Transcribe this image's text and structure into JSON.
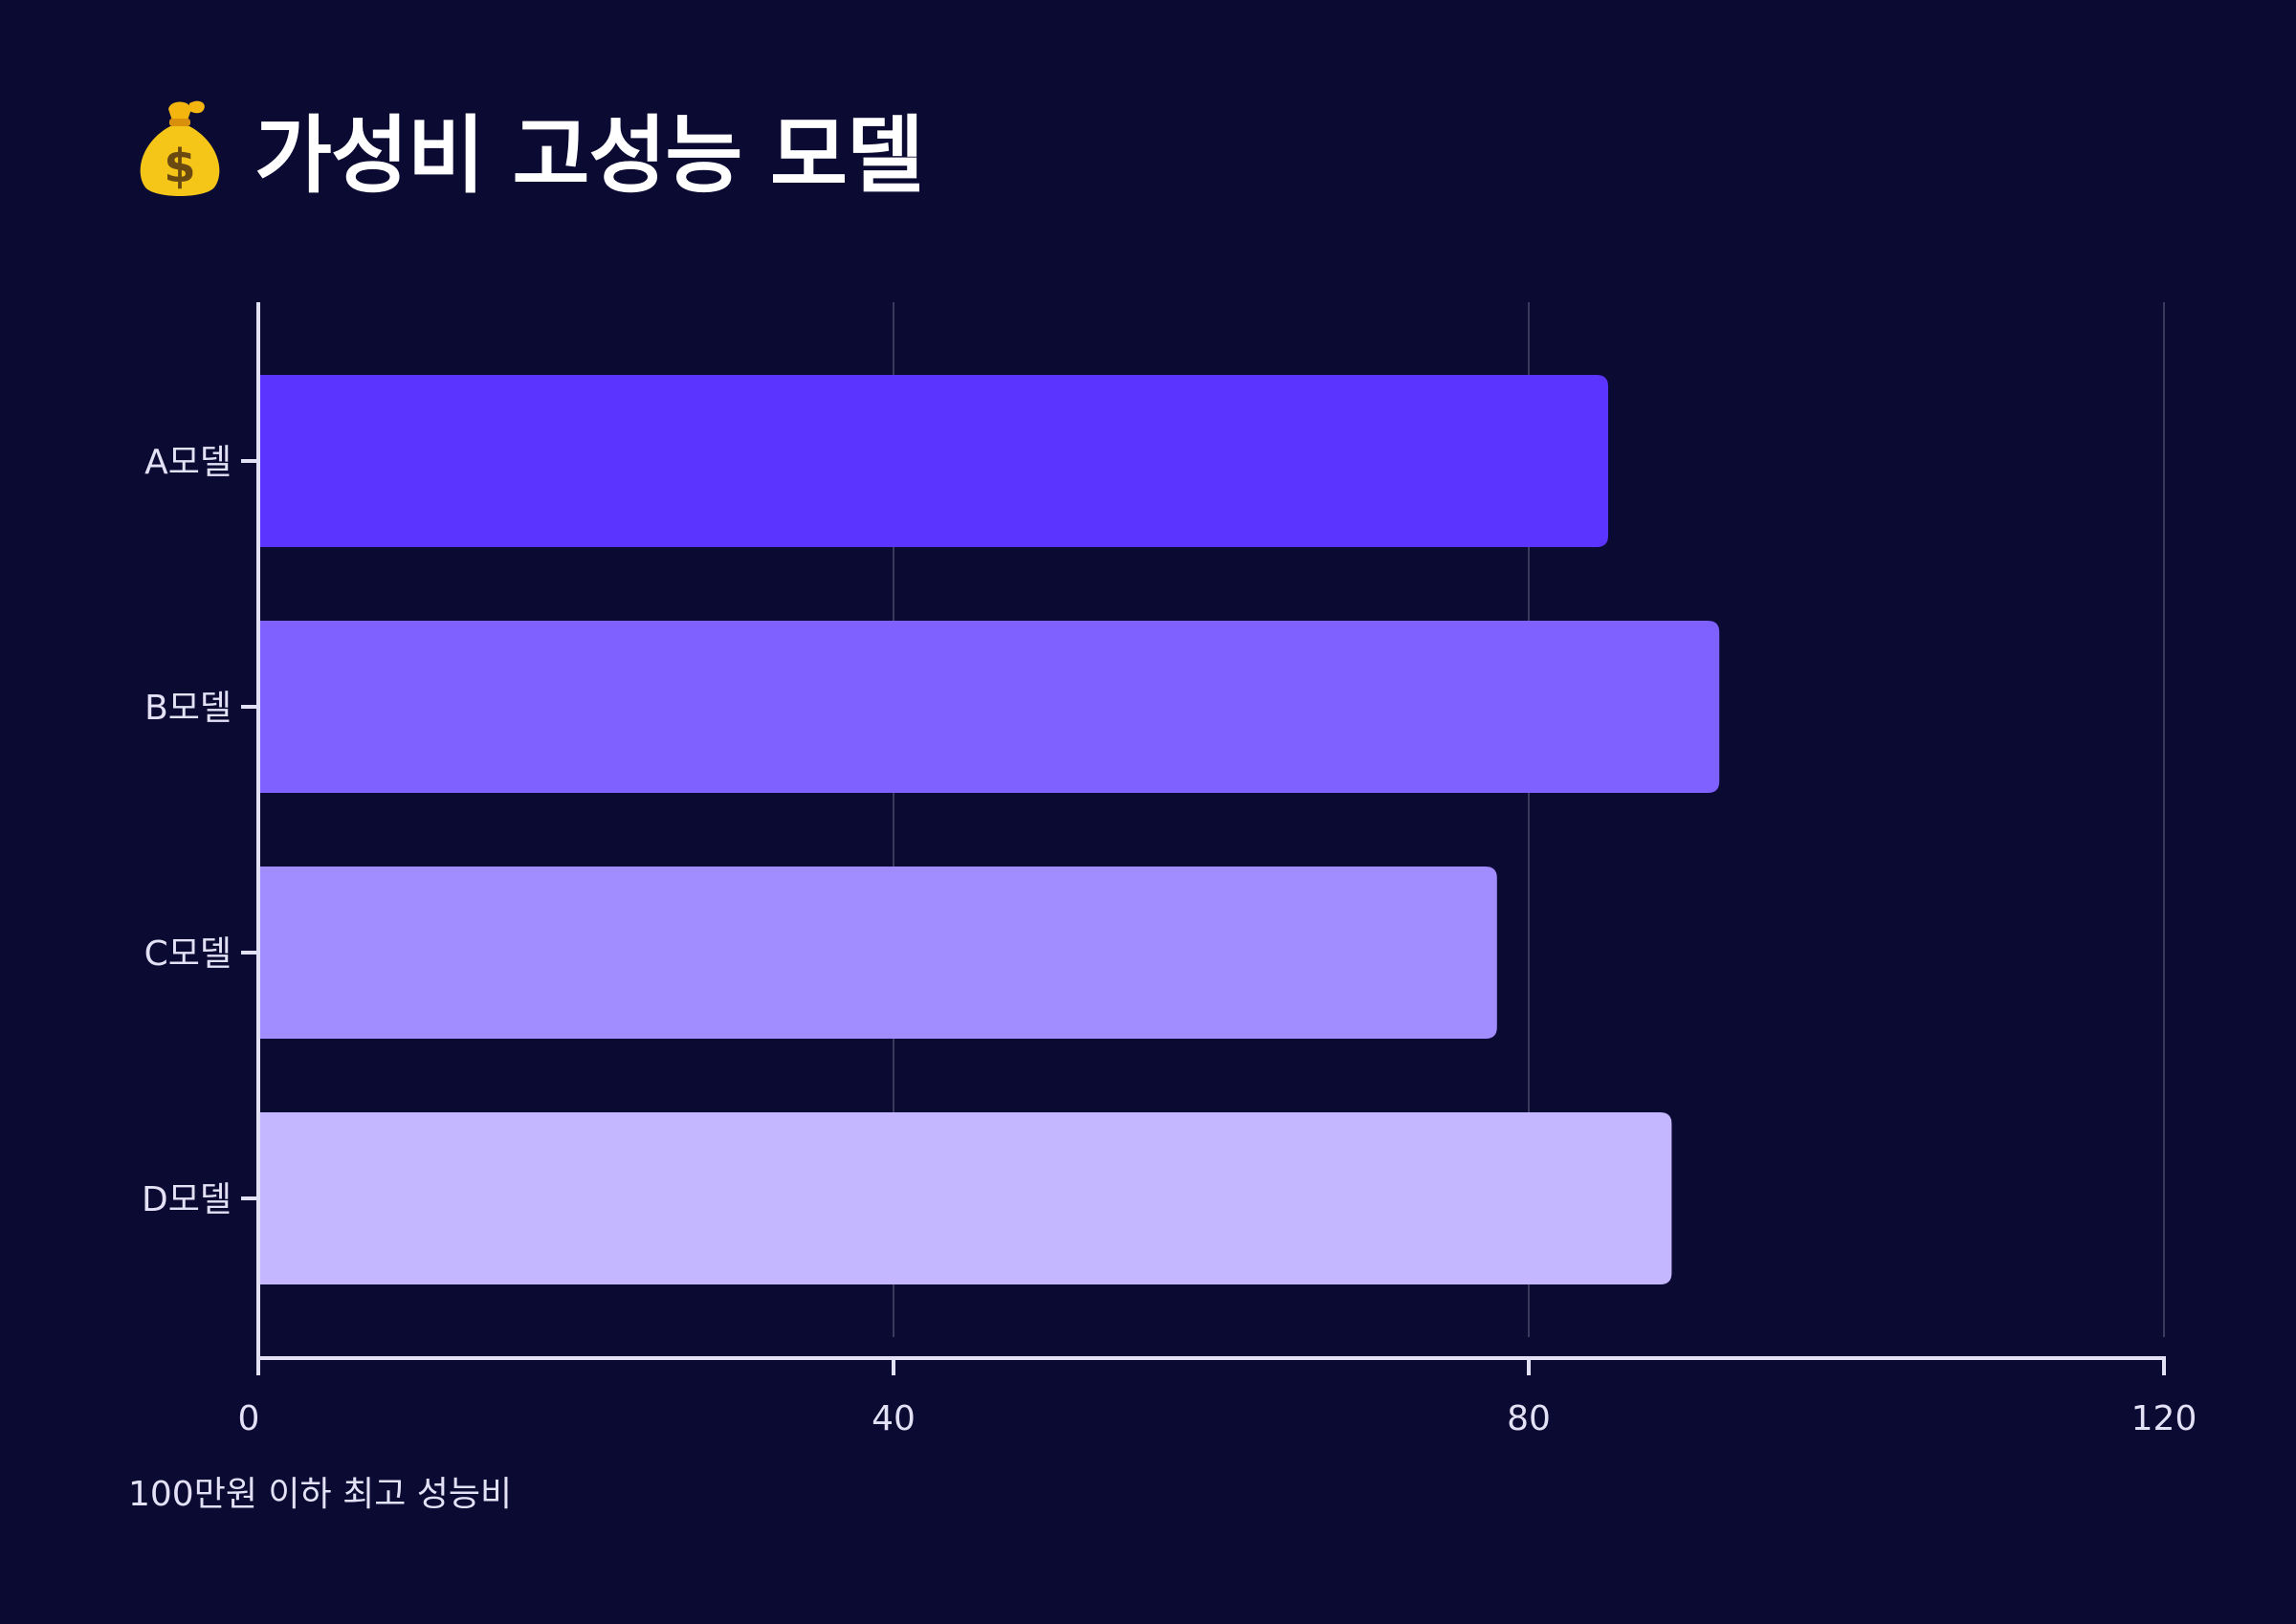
{
  "title": "가성비 고성능 모델",
  "title_icon": "money-bag-icon",
  "subtitle": "100만원 이하 최고 성능비",
  "colors": {
    "background": "#0b0a33",
    "axis": "#e3e1f5",
    "grid": "#3b3a5e",
    "text": "#e3e1f5"
  },
  "chart_data": {
    "type": "bar",
    "orientation": "horizontal",
    "categories": [
      "A모델",
      "B모델",
      "C모델",
      "D모델"
    ],
    "values": [
      85,
      92,
      78,
      89
    ],
    "bar_colors": [
      "#5b34ff",
      "#7f61ff",
      "#a18dff",
      "#c4b7ff"
    ],
    "xlim": [
      0,
      120
    ],
    "xticks": [
      "0",
      "40",
      "80",
      "120"
    ],
    "grid": true
  }
}
